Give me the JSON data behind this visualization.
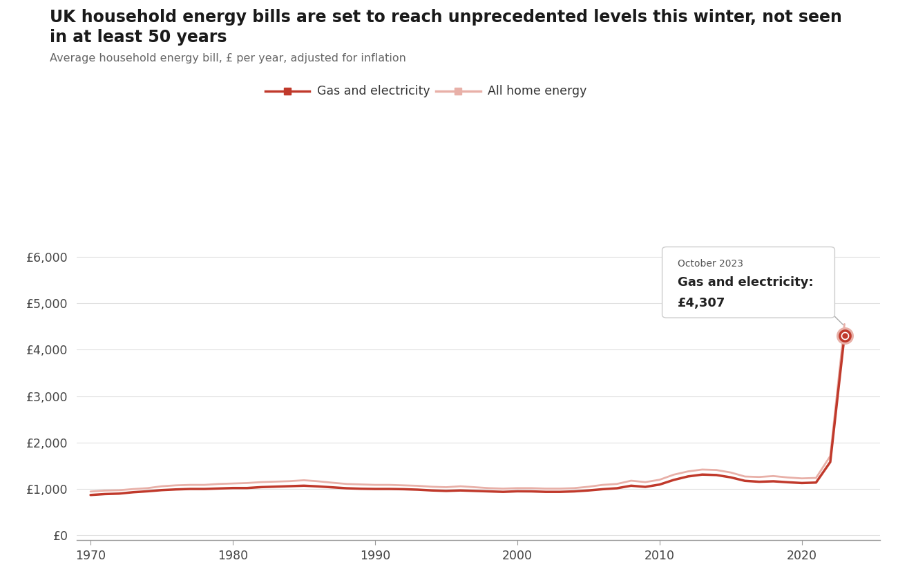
{
  "title_line1": "UK household energy bills are set to reach unprecedented levels this winter, not seen",
  "title_line2": "in at least 50 years",
  "subtitle": "Average household energy bill, £ per year, adjusted for inflation",
  "legend_gas": "Gas and electricity",
  "legend_all": "All home energy",
  "tooltip_date": "October 2023",
  "tooltip_line1": "Gas and electricity:",
  "tooltip_value": "£4,307",
  "background_color": "#ffffff",
  "gas_color": "#c0392b",
  "all_color": "#e8b0a8",
  "grid_color": "#e0e0e0",
  "title_color": "#1a1a1a",
  "subtitle_color": "#666666",
  "ytick_labels": [
    "£0",
    "£1,000",
    "£2,000",
    "£3,000",
    "£4,000",
    "£5,000",
    "£6,000"
  ],
  "ytick_values": [
    0,
    1000,
    2000,
    3000,
    4000,
    5000,
    6000
  ],
  "xlim": [
    1969,
    2025.5
  ],
  "ylim": [
    -100,
    6600
  ],
  "gas_x": [
    1970,
    1971,
    1972,
    1973,
    1974,
    1975,
    1976,
    1977,
    1978,
    1979,
    1980,
    1981,
    1982,
    1983,
    1984,
    1985,
    1986,
    1987,
    1988,
    1989,
    1990,
    1991,
    1992,
    1993,
    1994,
    1995,
    1996,
    1997,
    1998,
    1999,
    2000,
    2001,
    2002,
    2003,
    2004,
    2005,
    2006,
    2007,
    2008,
    2009,
    2010,
    2011,
    2012,
    2013,
    2014,
    2015,
    2016,
    2017,
    2018,
    2019,
    2020,
    2021,
    2022,
    2023
  ],
  "gas_y": [
    870,
    890,
    900,
    930,
    950,
    975,
    990,
    1000,
    1000,
    1010,
    1020,
    1020,
    1040,
    1050,
    1060,
    1070,
    1055,
    1035,
    1015,
    1005,
    1000,
    1000,
    995,
    985,
    968,
    958,
    968,
    958,
    948,
    938,
    950,
    948,
    938,
    938,
    948,
    968,
    995,
    1015,
    1070,
    1045,
    1095,
    1195,
    1270,
    1310,
    1300,
    1250,
    1175,
    1155,
    1165,
    1145,
    1128,
    1138,
    1580,
    4307
  ],
  "all_x": [
    1970,
    1971,
    1972,
    1973,
    1974,
    1975,
    1976,
    1977,
    1978,
    1979,
    1980,
    1981,
    1982,
    1983,
    1984,
    1985,
    1986,
    1987,
    1988,
    1989,
    1990,
    1991,
    1992,
    1993,
    1994,
    1995,
    1996,
    1997,
    1998,
    1999,
    2000,
    2001,
    2002,
    2003,
    2004,
    2005,
    2006,
    2007,
    2008,
    2009,
    2010,
    2011,
    2012,
    2013,
    2014,
    2015,
    2016,
    2017,
    2018,
    2019,
    2020,
    2021,
    2022,
    2023
  ],
  "all_y": [
    945,
    965,
    972,
    998,
    1018,
    1058,
    1078,
    1088,
    1088,
    1108,
    1118,
    1128,
    1148,
    1158,
    1168,
    1188,
    1165,
    1135,
    1108,
    1098,
    1088,
    1088,
    1078,
    1068,
    1048,
    1038,
    1058,
    1038,
    1018,
    1008,
    1018,
    1018,
    1008,
    1008,
    1018,
    1048,
    1088,
    1108,
    1178,
    1148,
    1198,
    1308,
    1378,
    1418,
    1408,
    1355,
    1268,
    1258,
    1278,
    1248,
    1228,
    1238,
    1710,
    4550
  ]
}
